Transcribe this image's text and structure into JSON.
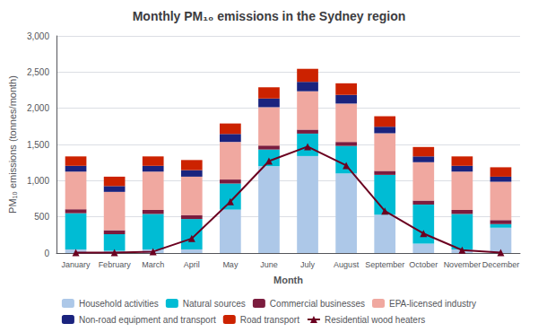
{
  "chart_data": {
    "type": "bar",
    "stacked": true,
    "title": "Monthly PM₁₀ emissions in the Sydney region",
    "xlabel": "Month",
    "ylabel": "PM₁₀ emissions (tonnes/month)",
    "categories": [
      "January",
      "February",
      "March",
      "April",
      "May",
      "June",
      "July",
      "August",
      "September",
      "October",
      "November",
      "December"
    ],
    "series": [
      {
        "name": "Household activities",
        "color": "#adc8e8",
        "values": [
          50,
          30,
          50,
          50,
          600,
          1200,
          1340,
          1100,
          530,
          130,
          50,
          350
        ]
      },
      {
        "name": "Natural sources",
        "color": "#00bcd4",
        "values": [
          500,
          230,
          490,
          420,
          360,
          230,
          310,
          380,
          550,
          540,
          490,
          50
        ]
      },
      {
        "name": "Commercial businesses",
        "color": "#7B1C3E",
        "values": [
          55,
          55,
          55,
          55,
          55,
          55,
          55,
          55,
          55,
          55,
          55,
          55
        ]
      },
      {
        "name": "EPA-licensed industry",
        "color": "#f0a8a0",
        "values": [
          520,
          530,
          530,
          530,
          520,
          530,
          530,
          530,
          520,
          530,
          530,
          530
        ]
      },
      {
        "name": "Non-road equipment and transport",
        "color": "#1a237e",
        "values": [
          80,
          80,
          80,
          90,
          110,
          120,
          130,
          120,
          90,
          80,
          80,
          70
        ]
      },
      {
        "name": "Road transport",
        "color": "#cc2200",
        "values": [
          130,
          130,
          130,
          140,
          145,
          155,
          180,
          160,
          145,
          130,
          130,
          130
        ]
      },
      {
        "name": "Residential wood heaters",
        "type": "line",
        "marker": "triangle",
        "color": "#6B0020",
        "values": [
          5,
          5,
          20,
          200,
          710,
          1270,
          1470,
          1210,
          580,
          270,
          40,
          5
        ]
      }
    ],
    "ylim": [
      0,
      3000
    ],
    "yticks": [
      0,
      500,
      {
        "value": 1000,
        "label": "1,000"
      },
      {
        "value": 1500,
        "label": "1,500"
      },
      {
        "value": 2000,
        "label": "2,000"
      },
      {
        "value": 2500,
        "label": "2,500"
      },
      {
        "value": 3000,
        "label": "3,000"
      }
    ],
    "grid": true,
    "legend": "bottom"
  }
}
